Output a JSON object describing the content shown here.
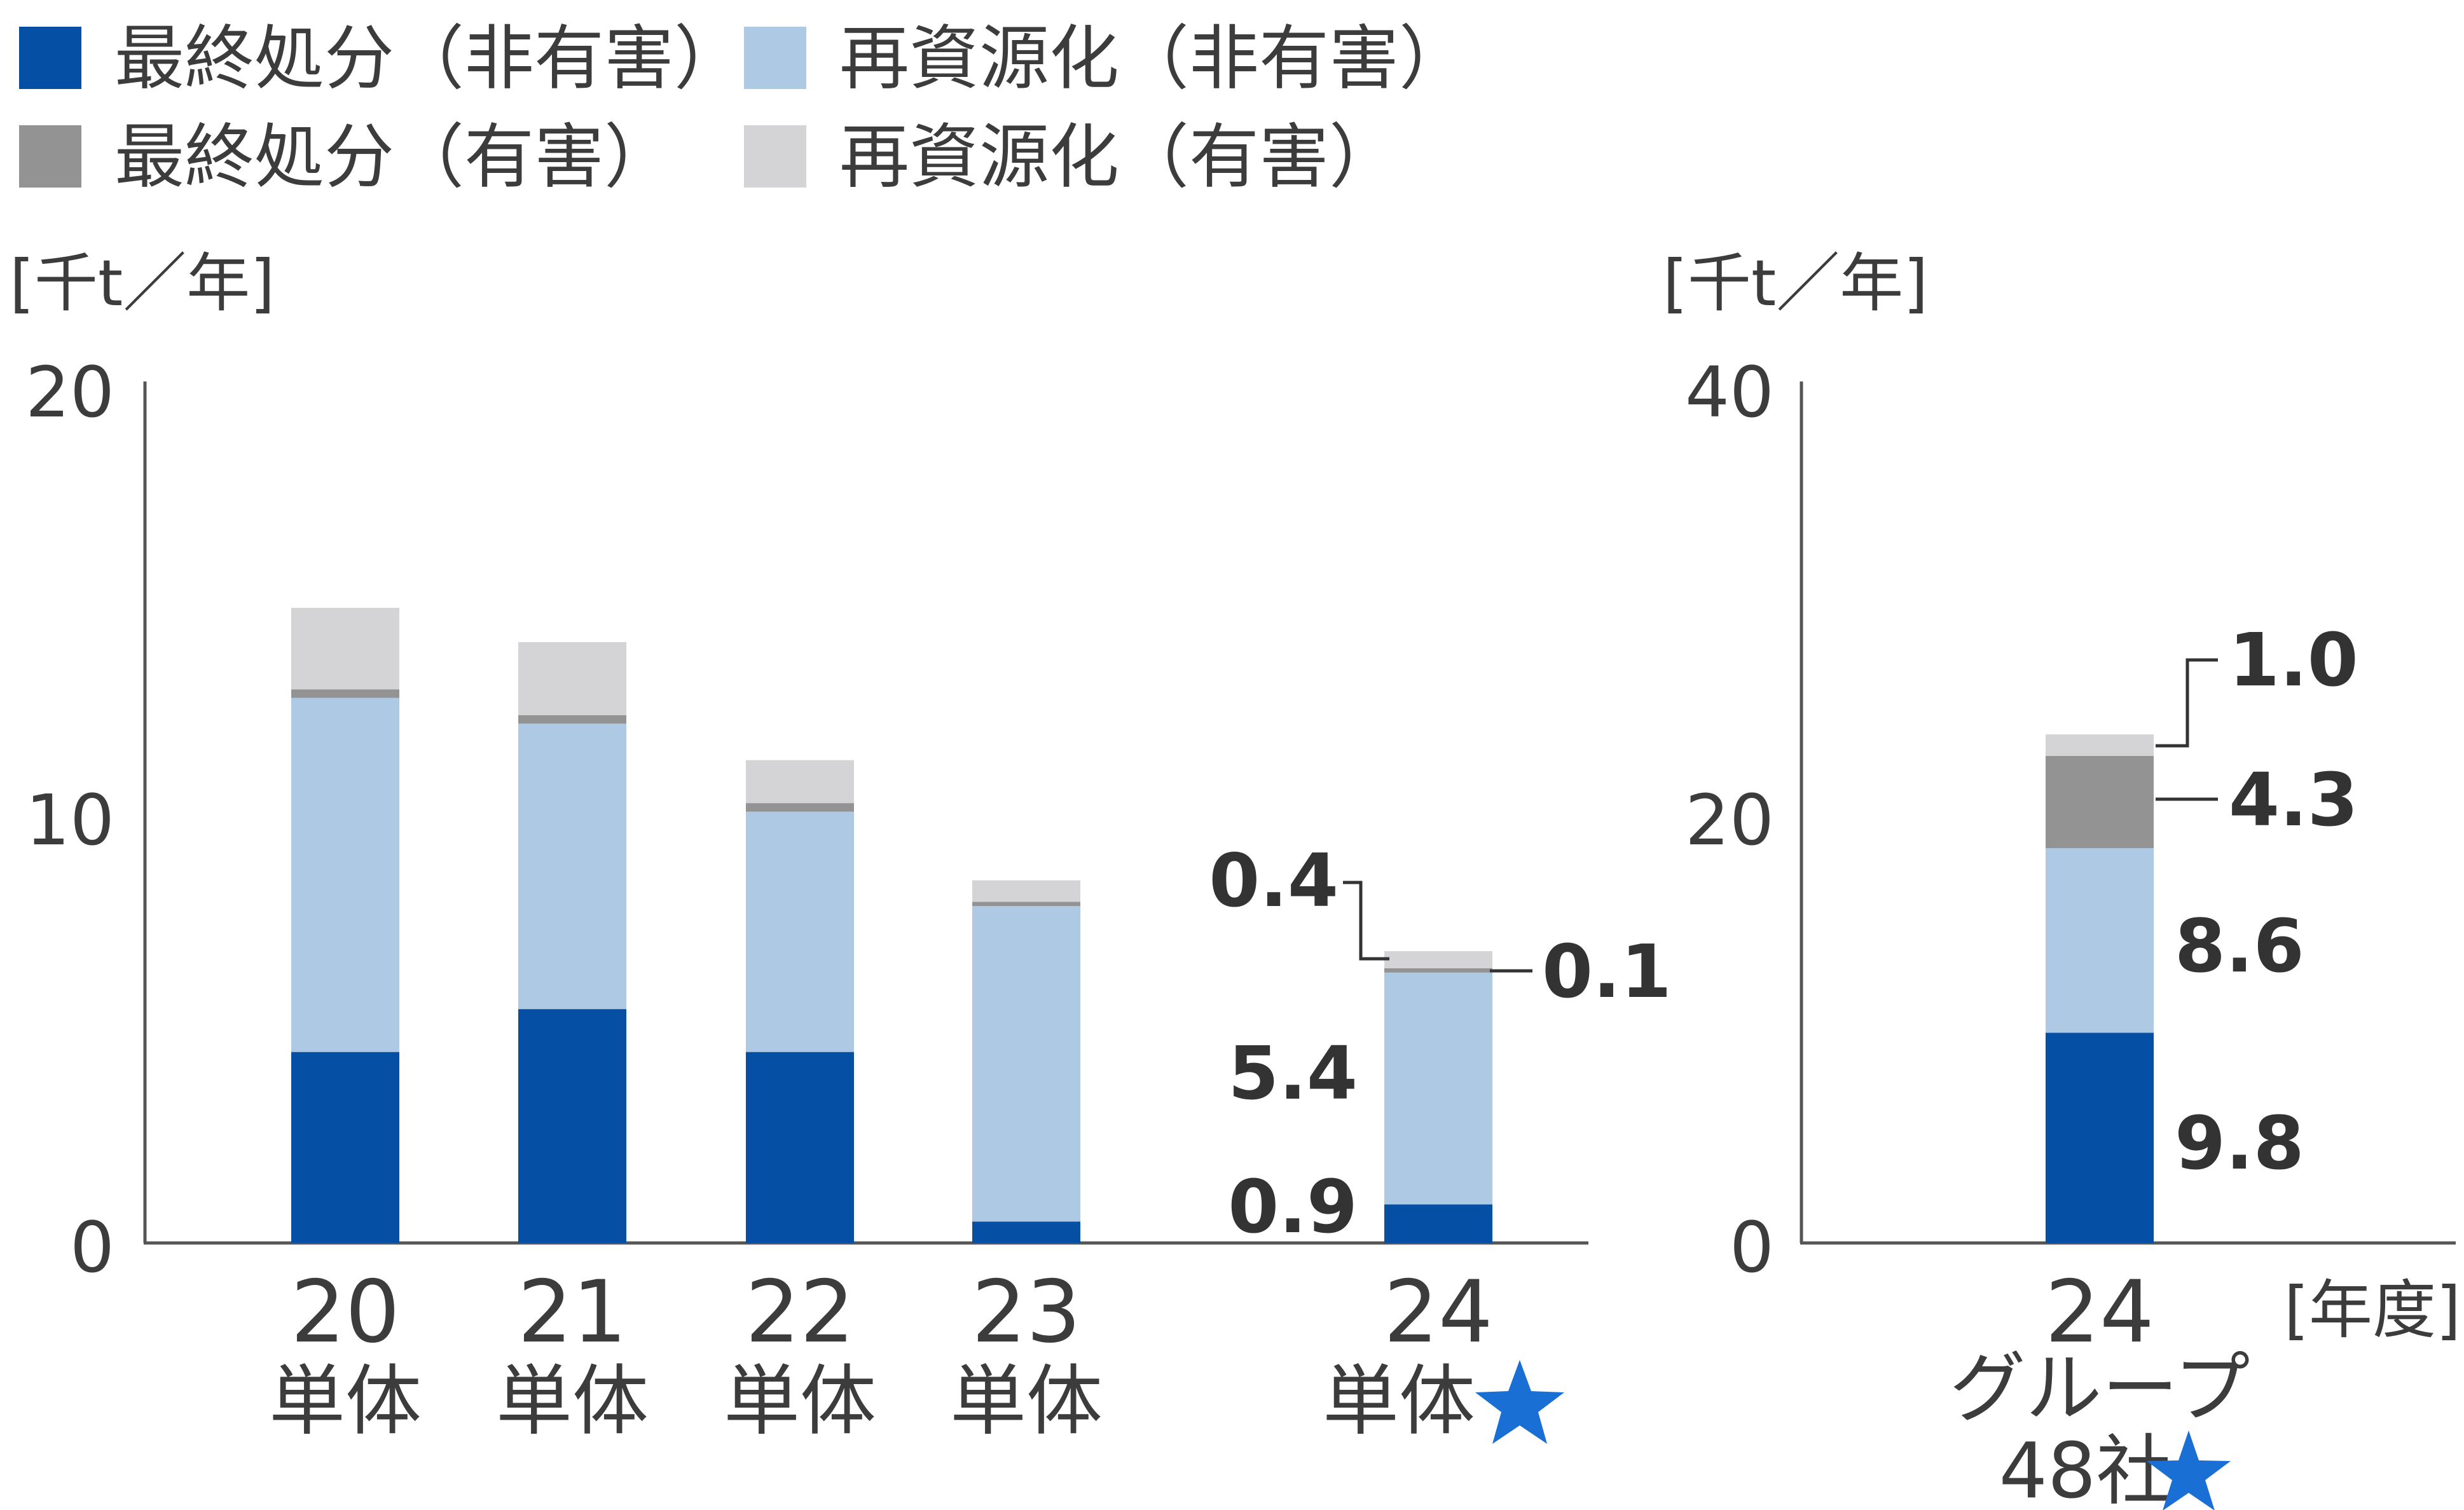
{
  "legend": [
    {
      "label": "最終処分（非有害）",
      "color": "#0550a5"
    },
    {
      "label": "再資源化（非有害）",
      "color": "#aec9e3"
    },
    {
      "label": "最終処分（有害）",
      "color": "#939393"
    },
    {
      "label": "再資源化（有害）",
      "color": "#d4d4d6"
    }
  ],
  "star_color": "#1a6fd4",
  "axis_color": "#555555",
  "chart_data": [
    {
      "type": "bar",
      "stacked": true,
      "ylabel": "[千t／年]",
      "ylim": [
        0,
        20
      ],
      "yticks": [
        "0",
        "10",
        "20"
      ],
      "categories": [
        "20",
        "21",
        "22",
        "23",
        "24"
      ],
      "category_sublabels": [
        "単体",
        "単体",
        "単体",
        "単体",
        "単体"
      ],
      "starred": [
        false,
        false,
        false,
        false,
        true
      ],
      "series": [
        {
          "name": "最終処分（非有害）",
          "color": "#0550a5",
          "values": [
            4.45,
            5.45,
            4.45,
            0.5,
            0.9
          ]
        },
        {
          "name": "再資源化（非有害）",
          "color": "#aec9e3",
          "values": [
            8.25,
            6.65,
            5.6,
            7.35,
            5.4
          ]
        },
        {
          "name": "最終処分（有害）",
          "color": "#939393",
          "values": [
            0.2,
            0.2,
            0.2,
            0.1,
            0.1
          ]
        },
        {
          "name": "再資源化（有害）",
          "color": "#d4d4d6",
          "values": [
            1.9,
            1.7,
            1.0,
            0.5,
            0.4
          ]
        }
      ],
      "data_labels": {
        "category": "24",
        "values": [
          "0.9",
          "5.4",
          "0.1",
          "0.4"
        ]
      }
    },
    {
      "type": "bar",
      "stacked": true,
      "ylabel": "[千t／年]",
      "xlabel": "[年度]",
      "ylim": [
        0,
        40
      ],
      "yticks": [
        "0",
        "20",
        "40"
      ],
      "categories": [
        "24"
      ],
      "category_sublabels": [
        "グループ",
        "48社"
      ],
      "starred": [
        true
      ],
      "series": [
        {
          "name": "最終処分（非有害）",
          "color": "#0550a5",
          "values": [
            9.8
          ]
        },
        {
          "name": "再資源化（非有害）",
          "color": "#aec9e3",
          "values": [
            8.6
          ]
        },
        {
          "name": "最終処分（有害）",
          "color": "#939393",
          "values": [
            4.3
          ]
        },
        {
          "name": "再資源化（有害）",
          "color": "#d4d4d6",
          "values": [
            1.0
          ]
        }
      ],
      "data_labels": {
        "category": "24",
        "values": [
          "9.8",
          "8.6",
          "4.3",
          "1.0"
        ]
      }
    }
  ]
}
